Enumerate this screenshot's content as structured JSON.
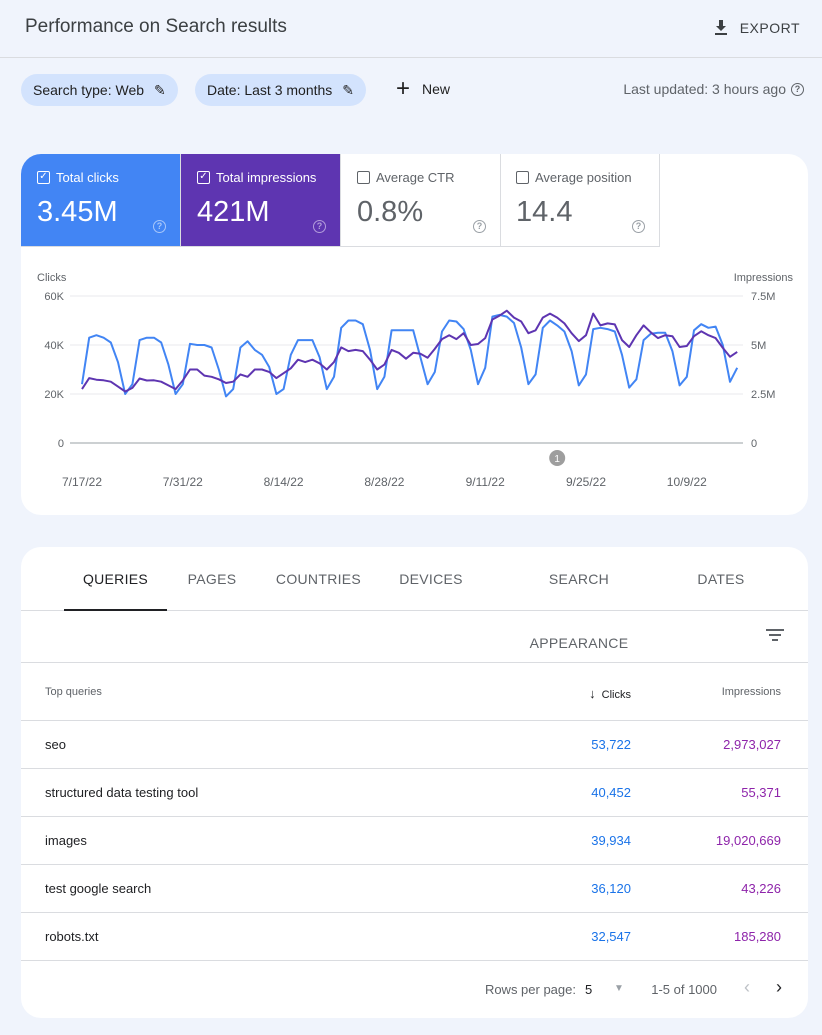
{
  "header": {
    "title": "Performance on Search results",
    "export_label": "EXPORT"
  },
  "filters": {
    "chips": [
      {
        "label": "Search type: Web"
      },
      {
        "label": "Date: Last 3 months"
      }
    ],
    "new_label": "New",
    "last_updated": "Last updated: 3 hours ago"
  },
  "metrics": [
    {
      "label": "Total clicks",
      "value": "3.45M",
      "checked": true,
      "color": "#4285f4"
    },
    {
      "label": "Total impressions",
      "value": "421M",
      "checked": true,
      "color": "#5e35b1"
    },
    {
      "label": "Average CTR",
      "value": "0.8%",
      "checked": false
    },
    {
      "label": "Average position",
      "value": "14.4",
      "checked": false
    }
  ],
  "chart_data": {
    "type": "line",
    "left_axis_label": "Clicks",
    "right_axis_label": "Impressions",
    "left_ticks": [
      "0",
      "20K",
      "40K",
      "60K"
    ],
    "right_ticks": [
      "0",
      "2.5M",
      "5M",
      "7.5M"
    ],
    "left_ylim": [
      0,
      60000
    ],
    "right_ylim": [
      0,
      7500000
    ],
    "x_tick_labels": [
      "7/17/22",
      "7/31/22",
      "8/14/22",
      "8/28/22",
      "9/11/22",
      "9/25/22",
      "10/9/22"
    ],
    "grid": true,
    "annotation": {
      "label": "1",
      "date": "9/21/22"
    },
    "x": [
      "7/17/22",
      "7/18/22",
      "7/19/22",
      "7/20/22",
      "7/21/22",
      "7/22/22",
      "7/23/22",
      "7/24/22",
      "7/25/22",
      "7/26/22",
      "7/27/22",
      "7/28/22",
      "7/29/22",
      "7/30/22",
      "7/31/22",
      "8/1/22",
      "8/2/22",
      "8/3/22",
      "8/4/22",
      "8/5/22",
      "8/6/22",
      "8/7/22",
      "8/8/22",
      "8/9/22",
      "8/10/22",
      "8/11/22",
      "8/12/22",
      "8/13/22",
      "8/14/22",
      "8/15/22",
      "8/16/22",
      "8/17/22",
      "8/18/22",
      "8/19/22",
      "8/20/22",
      "8/21/22",
      "8/22/22",
      "8/23/22",
      "8/24/22",
      "8/25/22",
      "8/26/22",
      "8/27/22",
      "8/28/22",
      "8/29/22",
      "8/30/22",
      "8/31/22",
      "9/1/22",
      "9/2/22",
      "9/3/22",
      "9/4/22",
      "9/5/22",
      "9/6/22",
      "9/7/22",
      "9/8/22",
      "9/9/22",
      "9/10/22",
      "9/11/22",
      "9/12/22",
      "9/13/22",
      "9/14/22",
      "9/15/22",
      "9/16/22",
      "9/17/22",
      "9/18/22",
      "9/19/22",
      "9/20/22",
      "9/21/22",
      "9/22/22",
      "9/23/22",
      "9/24/22",
      "9/25/22",
      "9/26/22",
      "9/27/22",
      "9/28/22",
      "9/29/22",
      "9/30/22",
      "10/1/22",
      "10/2/22",
      "10/3/22",
      "10/4/22",
      "10/5/22",
      "10/6/22",
      "10/7/22",
      "10/8/22",
      "10/9/22",
      "10/10/22",
      "10/11/22",
      "10/12/22",
      "10/13/22",
      "10/14/22",
      "10/15/22",
      "10/16/22"
    ],
    "series": [
      {
        "name": "Clicks",
        "axis": "left",
        "color": "#4285f4",
        "values": [
          24000,
          43000,
          44000,
          43000,
          41000,
          33000,
          20000,
          24000,
          42000,
          43000,
          43000,
          41000,
          32000,
          20000,
          24000,
          40500,
          40000,
          40000,
          39000,
          30000,
          19000,
          22000,
          39000,
          41500,
          38000,
          36000,
          31000,
          20000,
          22000,
          36000,
          42000,
          42000,
          42000,
          35000,
          22000,
          27000,
          47000,
          50000,
          50000,
          48500,
          38000,
          22000,
          27000,
          46000,
          46000,
          46000,
          46000,
          35000,
          24000,
          29000,
          45500,
          50000,
          49600,
          46500,
          38000,
          24000,
          30700,
          51600,
          52300,
          51600,
          49000,
          39000,
          24000,
          28000,
          47000,
          50000,
          48000,
          45500,
          37500,
          23500,
          28000,
          46500,
          47000,
          46500,
          45500,
          36000,
          22600,
          26000,
          42000,
          44600,
          45000,
          45000,
          37500,
          23500,
          27000,
          46000,
          48500,
          47000,
          47500,
          40000,
          25000,
          30700
        ]
      },
      {
        "name": "Impressions",
        "axis": "right",
        "color": "#5e35b1",
        "values": [
          2750000,
          3310000,
          3230000,
          3200000,
          3130000,
          2880000,
          2630000,
          2810000,
          3290000,
          3190000,
          3200000,
          3130000,
          2940000,
          2750000,
          3190000,
          3750000,
          3750000,
          3440000,
          3380000,
          3250000,
          3060000,
          3130000,
          3500000,
          3380000,
          3750000,
          3750000,
          3630000,
          3310000,
          3560000,
          3810000,
          4250000,
          4130000,
          4250000,
          4060000,
          3750000,
          4130000,
          4880000,
          4690000,
          4750000,
          4690000,
          4250000,
          3750000,
          4000000,
          4750000,
          4600000,
          4300000,
          4600000,
          4550000,
          4350000,
          4800000,
          5300000,
          5500000,
          5300000,
          5600000,
          5000000,
          5050000,
          5350000,
          6300000,
          6500000,
          6750000,
          6400000,
          6200000,
          5600000,
          5750000,
          6400000,
          6600000,
          6400000,
          6100000,
          5600000,
          5200000,
          5500000,
          6600000,
          6000000,
          6100000,
          6050000,
          5250000,
          4900000,
          5500000,
          6000000,
          5650000,
          5350000,
          5500000,
          5450000,
          4900000,
          4950000,
          5450000,
          5700000,
          5500000,
          5350000,
          4850000,
          4400000,
          4650000
        ]
      }
    ]
  },
  "table": {
    "tabs": [
      "QUERIES",
      "PAGES",
      "COUNTRIES",
      "DEVICES",
      "SEARCH APPEARANCE",
      "DATES"
    ],
    "active_tab": "QUERIES",
    "columns": {
      "query": "Top queries",
      "clicks": "Clicks",
      "impressions": "Impressions"
    },
    "sort": "Clicks descending",
    "rows": [
      {
        "query": "seo",
        "clicks": "53,722",
        "impressions": "2,973,027"
      },
      {
        "query": "structured data testing tool",
        "clicks": "40,452",
        "impressions": "55,371"
      },
      {
        "query": "images",
        "clicks": "39,934",
        "impressions": "19,020,669"
      },
      {
        "query": "test google search",
        "clicks": "36,120",
        "impressions": "43,226"
      },
      {
        "query": "robots.txt",
        "clicks": "32,547",
        "impressions": "185,280"
      }
    ],
    "pagination": {
      "rows_per_page_label": "Rows per page:",
      "rows_per_page": "5",
      "range": "1-5 of 1000"
    }
  }
}
